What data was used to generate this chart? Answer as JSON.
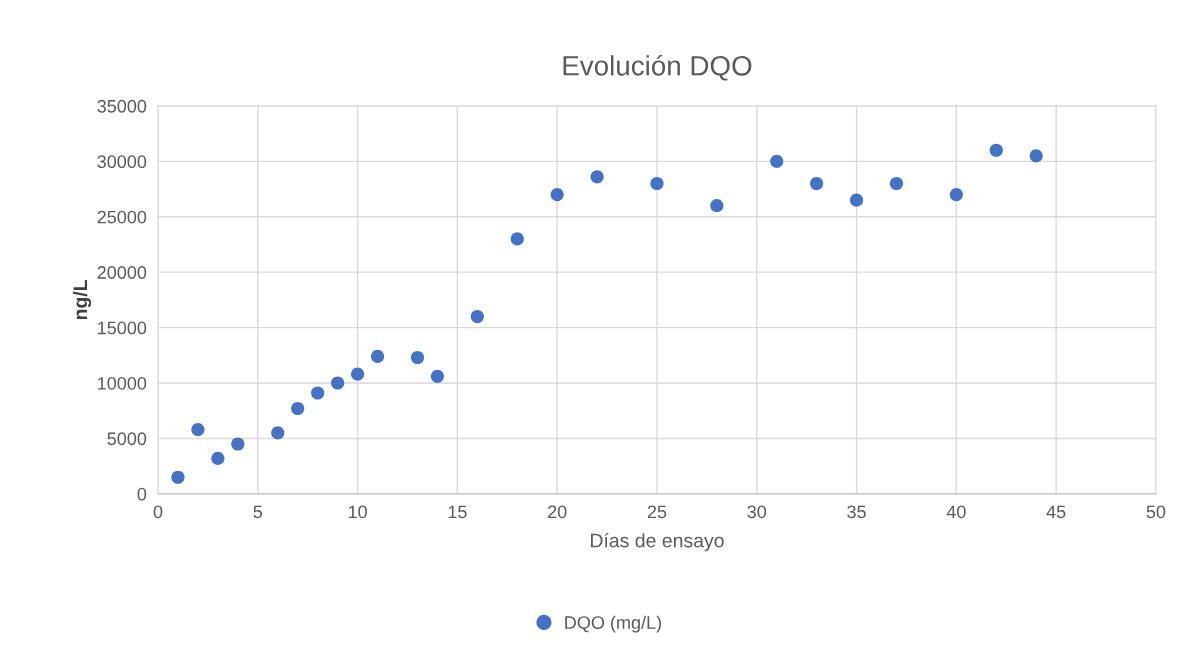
{
  "chart_data": {
    "type": "scatter",
    "title": "Evolución DQO",
    "xlabel": "Días de ensayo",
    "ylabel": "ng/L",
    "x": [
      1,
      2,
      3,
      4,
      6,
      7,
      8,
      9,
      10,
      11,
      13,
      14,
      16,
      18,
      20,
      22,
      25,
      28,
      31,
      33,
      35,
      37,
      40,
      42,
      44
    ],
    "series": [
      {
        "name": "DQO (mg/L)",
        "color": "#4472c4",
        "values": [
          1500,
          5800,
          3200,
          4500,
          5500,
          7700,
          9100,
          10000,
          10800,
          12400,
          12300,
          10600,
          16000,
          23000,
          27000,
          28600,
          28000,
          26000,
          30000,
          28000,
          26500,
          28000,
          27000,
          31000,
          30500
        ]
      }
    ],
    "xlim": [
      0,
      50
    ],
    "xticks": [
      0,
      5,
      10,
      15,
      20,
      25,
      30,
      35,
      40,
      45,
      50
    ],
    "ylim": [
      0,
      35000
    ],
    "yticks": [
      0,
      5000,
      10000,
      15000,
      20000,
      25000,
      30000,
      35000
    ],
    "grid": true,
    "legend": "bottom",
    "marker": "circle"
  }
}
